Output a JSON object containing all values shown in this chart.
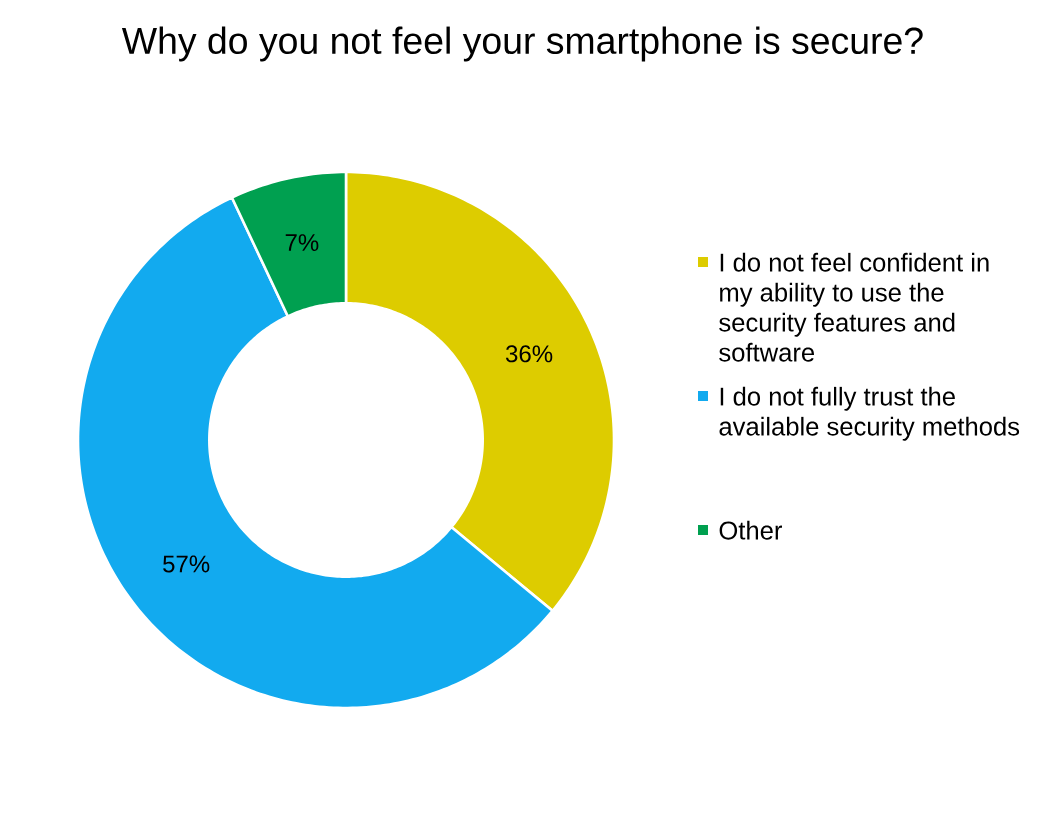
{
  "chart_data": {
    "type": "donut",
    "title": "Why do you not feel your smartphone is secure?",
    "categories": [
      "I do not feel confident in my ability to use the security features and software",
      "I do not fully trust the available security methods",
      "Other"
    ],
    "values": [
      36,
      57,
      7
    ],
    "colors": [
      "#ddcc00",
      "#12aaef",
      "#00a050"
    ],
    "value_labels": [
      "36%",
      "57%",
      "7%"
    ],
    "legend": "right"
  }
}
